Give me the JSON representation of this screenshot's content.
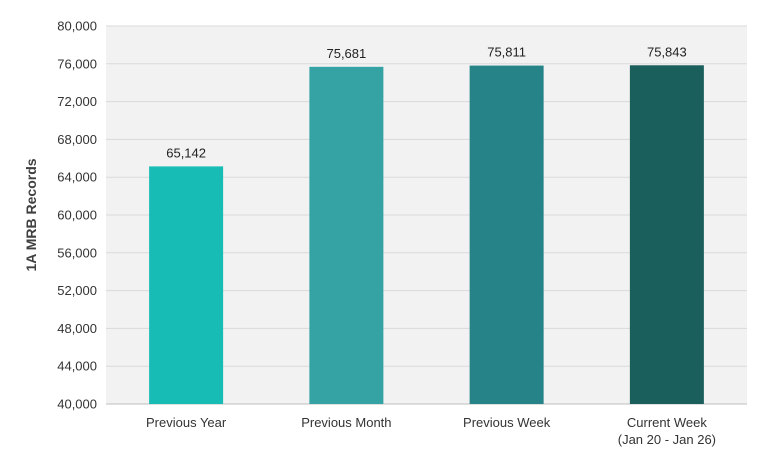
{
  "chart_data": {
    "type": "bar",
    "title": "",
    "xlabel": "",
    "ylabel": "1A MRB Records",
    "ylim": [
      40000,
      80000
    ],
    "yticks": [
      40000,
      44000,
      48000,
      52000,
      56000,
      60000,
      64000,
      68000,
      72000,
      76000,
      80000
    ],
    "ytick_labels": [
      "40,000",
      "44,000",
      "48,000",
      "52,000",
      "56,000",
      "60,000",
      "64,000",
      "68,000",
      "72,000",
      "76,000",
      "80,000"
    ],
    "grid": true,
    "categories": [
      [
        "Previous Year"
      ],
      [
        "Previous Month"
      ],
      [
        "Previous Week"
      ],
      [
        "Current Week",
        "(Jan 20 - Jan 26)"
      ]
    ],
    "values": [
      65142,
      75681,
      75811,
      75843
    ],
    "value_labels": [
      "65,142",
      "75,681",
      "75,811",
      "75,843"
    ],
    "colors": [
      "#17BCB4",
      "#35A2A4",
      "#268388",
      "#1B5F5C"
    ],
    "plot_background": "#F2F2F2",
    "grid_color": "#D9D9D9"
  }
}
